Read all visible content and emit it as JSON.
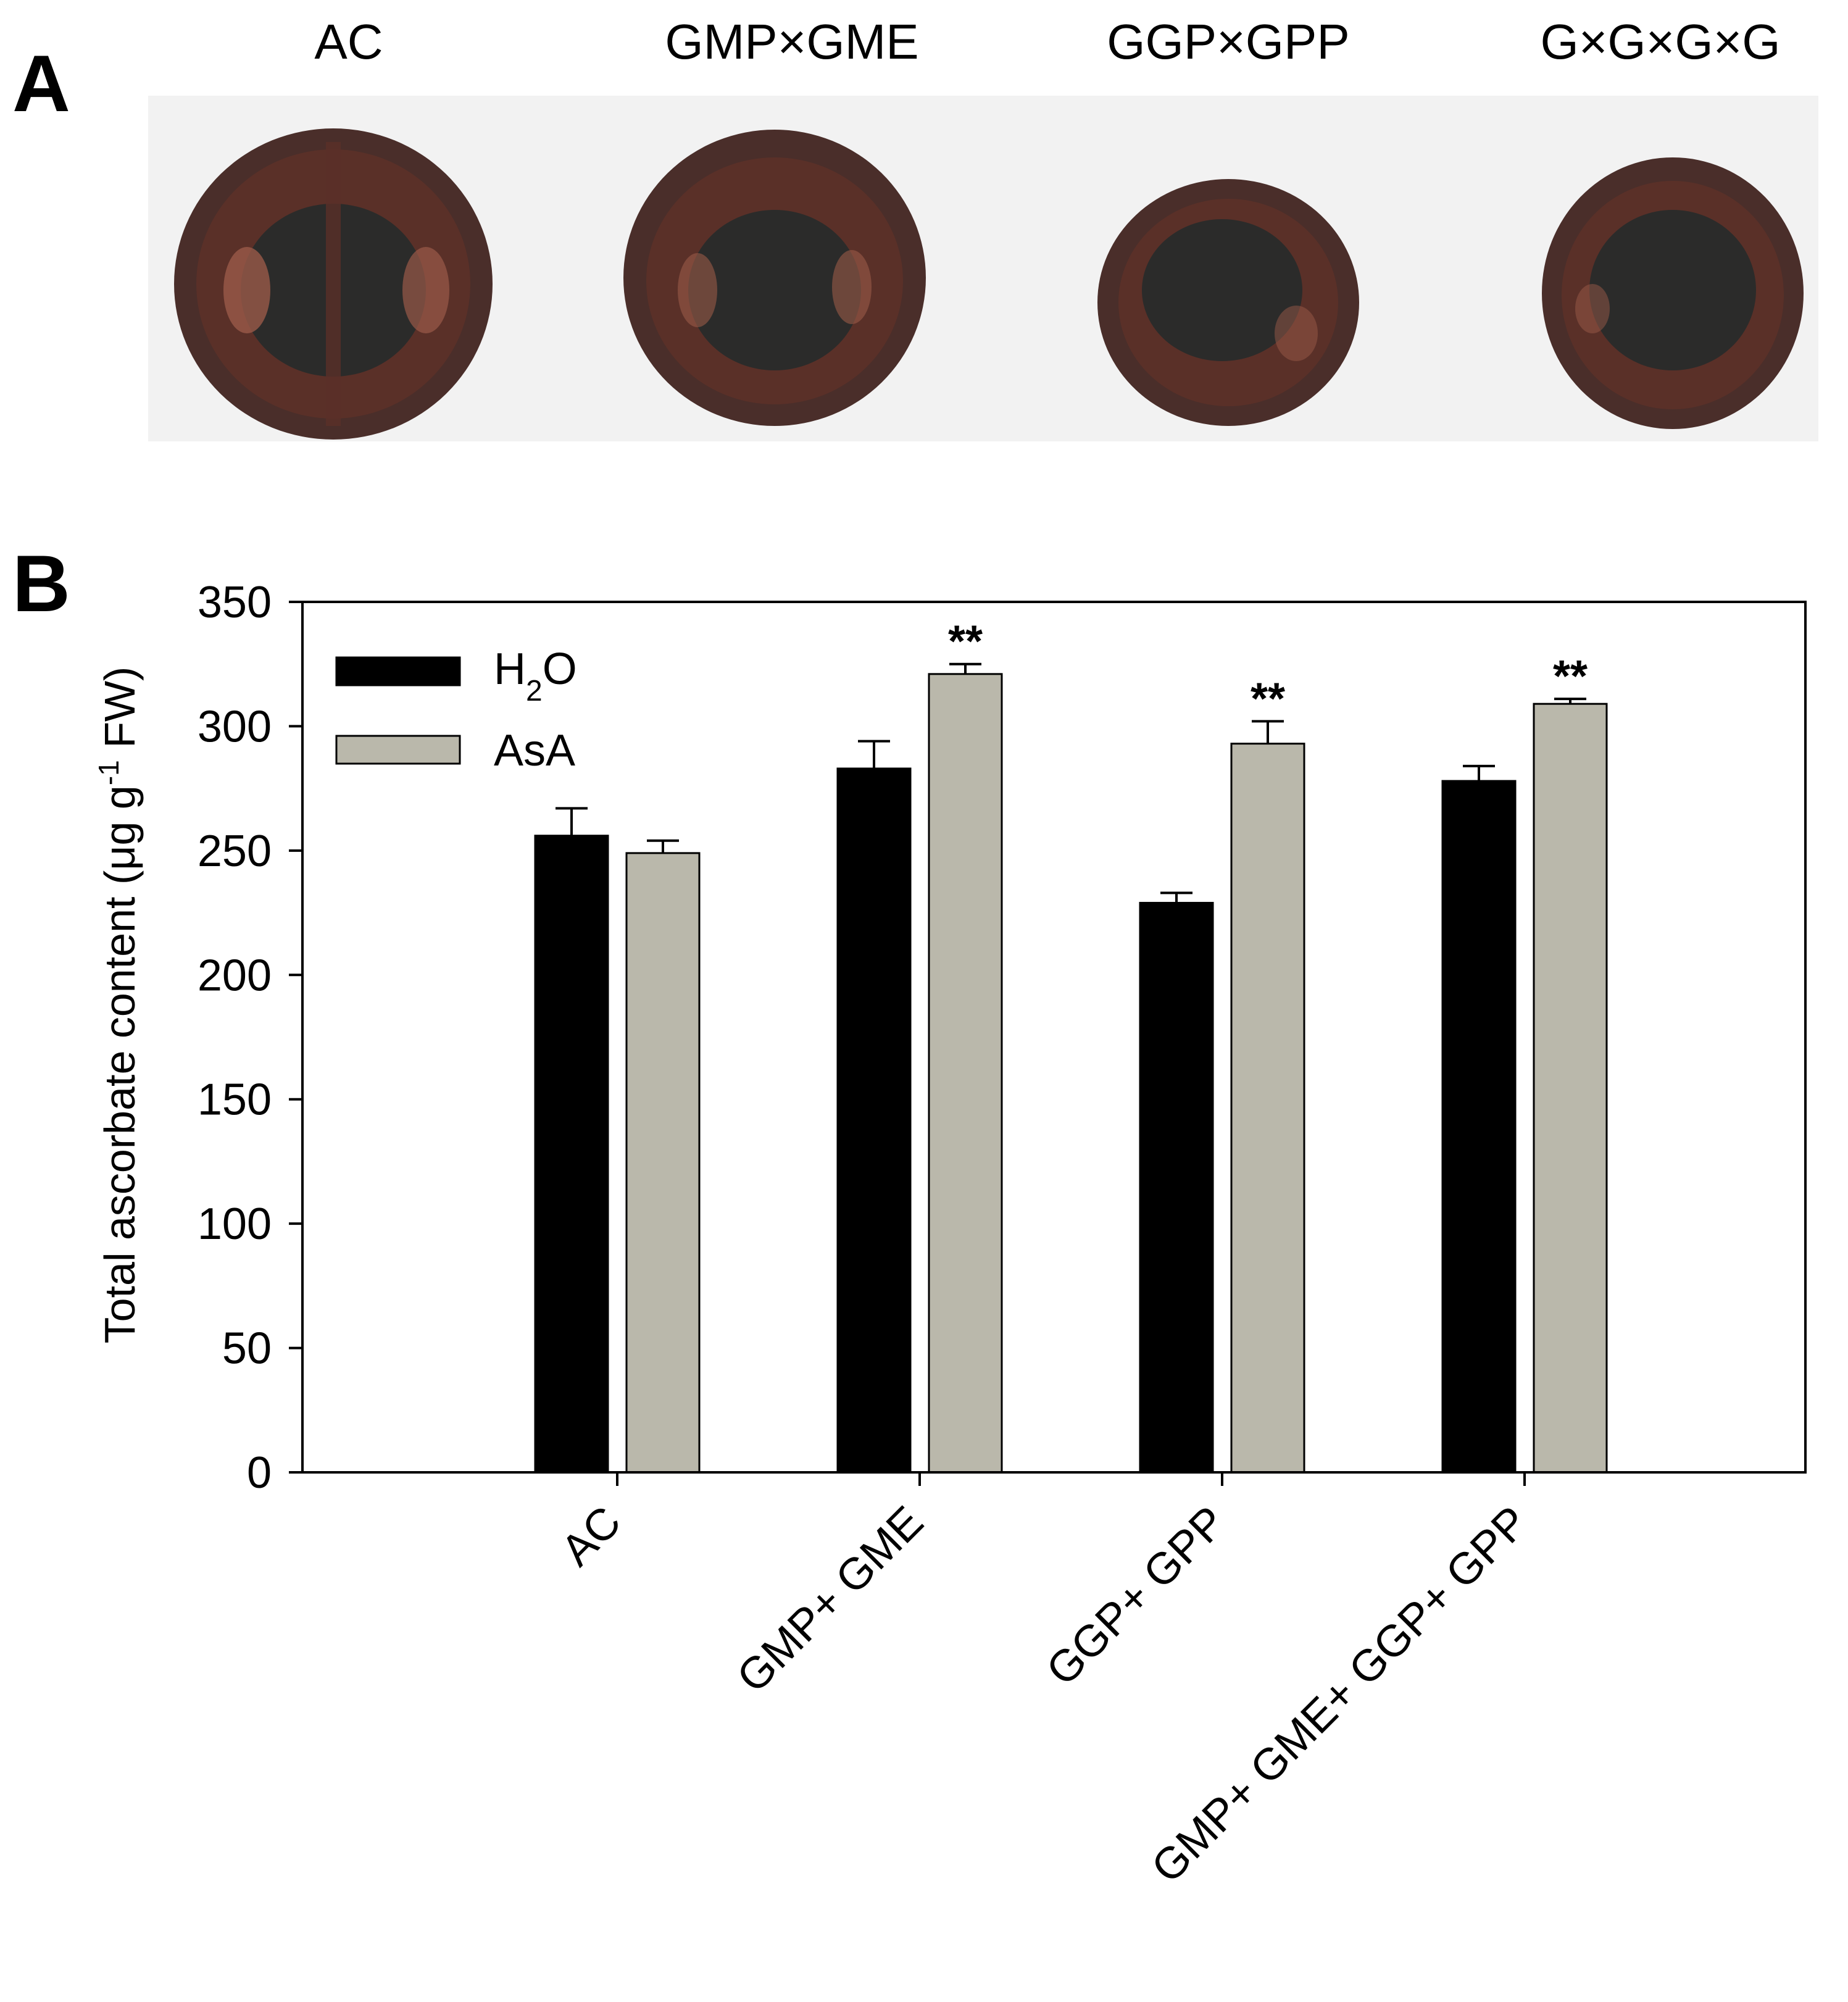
{
  "panel_a": {
    "letter": "A",
    "photo_labels": [
      "AC",
      "GMP×GME",
      "GGP×GPP",
      "G×G×G×G"
    ],
    "colors": {
      "background": "#f2f2f2",
      "pericarp": "#4a2e2a",
      "flesh": "#5a3028",
      "locule": "#2b2b2a",
      "highlight": "#9a5a48"
    }
  },
  "panel_b": {
    "letter": "B"
  },
  "chart_data": {
    "type": "bar",
    "categories": [
      "AC",
      "GMP+ GME",
      "GGP+ GPP",
      "GMP+ GME+ GGP+ GPP"
    ],
    "series": [
      {
        "name": "H2O",
        "color": "#000000",
        "values": [
          256,
          283,
          229,
          278
        ],
        "errors": [
          11,
          11,
          4,
          6
        ],
        "significance": [
          "",
          "",
          "",
          ""
        ]
      },
      {
        "name": "AsA",
        "color": "#bab8ab",
        "values": [
          249,
          321,
          293,
          309
        ],
        "errors": [
          5,
          4,
          9,
          2
        ],
        "significance": [
          "",
          "**",
          "**",
          "**"
        ]
      }
    ],
    "ylabel": "Total ascorbate content (μg g-1 FW)",
    "ylabel_parts": {
      "before": "Total ascorbate content (μg g",
      "superscript": "-1",
      "after": " FW)"
    },
    "legend_parts": [
      {
        "main": "H",
        "sub": "2",
        "rest": "O"
      },
      {
        "main": "AsA",
        "sub": "",
        "rest": ""
      }
    ],
    "ylim": [
      0,
      350
    ],
    "yticks": [
      "0",
      "50",
      "100",
      "150",
      "200",
      "250",
      "300",
      "350"
    ],
    "legend_position": "top-left",
    "grid": false
  }
}
